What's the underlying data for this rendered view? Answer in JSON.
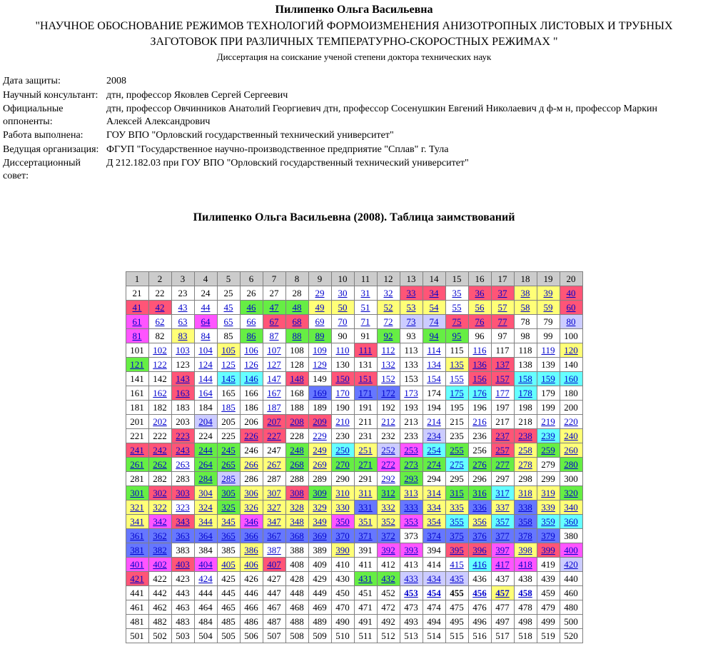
{
  "header": {
    "author": "Пилипенко Ольга Васильевна",
    "title": "\"НАУЧНОЕ ОБОСНОВАНИЕ РЕЖИМОВ ТЕХНОЛОГИЙ ФОРМОИЗМЕНЕНИЯ АНИЗОТРОПНЫХ ЛИСТОВЫХ И ТРУБНЫХ ЗАГОТОВОК ПРИ РАЗЛИЧНЫХ ТЕМПЕРАТУРНО-СКОРОСТНЫХ РЕЖИМАХ \"",
    "subtitle": "Диссертация на соискание ученой степени доктора технических наук"
  },
  "meta": {
    "rows": [
      {
        "label": "Дата защиты:",
        "value": "2008"
      },
      {
        "label": "Научный консультант:",
        "value": "дтн, профессор Яковлев Сергей Сергеевич"
      },
      {
        "label": "Официальные оппоненты:",
        "value": "дтн, профессор Овчинников Анатолий Георгиевич дтн, профессор Сосенушкин Евгений Николаевич д ф-м н, профессор Маркин Алексей Александрович"
      },
      {
        "label": "Работа выполнена:",
        "value": "ГОУ ВПО \"Орловский государственный технический университет\""
      },
      {
        "label": "Ведущая организация:",
        "value": "ФГУП \"Государственное научно-производственное предприятие \"Сплав\" г. Тула"
      },
      {
        "label": "Диссертационный совет:",
        "value": "Д 212.182.03 при ГОУ ВПО \"Орловский государственный технический университет\""
      }
    ]
  },
  "table_heading": "Пилипенко Ольга Васильевна (2008). Таблица заимствований",
  "grid": {
    "columns": 20,
    "start": 1,
    "end": 520,
    "link_color": "#0000cc",
    "plain_color": "#000000",
    "colors": {
      "g": "#cccccc",
      "w": "#ffffff",
      "r": "#ff5577",
      "y": "#ffff77",
      "m": "#ff55ff",
      "v": "#ccccff",
      "e": "#66ee44",
      "c": "#66ffff",
      "b": "#6677ff"
    },
    "bold_cells": [
      453,
      454,
      455,
      456,
      457,
      458
    ],
    "rows": [
      "g0 g0 g0 g0 g0 g0 g0 g0 g0 g0 g0 g0 g0 g0 g0 g0 g0 g0 g0 g0",
      "w0 w0 w0 w0 w0 w0 w0 w0 w1 w1 w1 w1 r1 r1 w1 r1 r1 y1 y1 r1",
      "r1 r1 w1 w1 w1 e1 e1 e1 y1 y1 w1 y1 y1 y1 w1 y1 y1 y1 y1 r1",
      "m1 w1 w1 m1 w1 w1 r1 r1 w1 w1 w1 w1 v1 v1 r1 r1 r1 w0 w0 v1",
      "m1 w0 y1 w1 w0 e1 w1 e1 e1 w0 w0 e1 w0 e1 e1 w0 w0 w0 w0 w0",
      "w0 w1 w1 w1 y1 w1 w1 w0 w1 w1 r1 w1 w0 w1 w0 w1 w0 w0 w1 y1",
      "e1 w1 w0 w1 w1 w1 w1 w0 w1 w0 w0 w1 w0 w1 y1 r1 r1 w0 w0 w0",
      "w0 w0 r1 w1 c1 c1 w1 r1 w0 r1 r1 w1 w0 w1 w1 r1 r1 c1 c1 c1",
      "w0 w1 r1 w1 w0 w0 w1 w0 b1 w1 b1 b1 w1 w0 c1 c1 w1 c1 w0 w0",
      "w0 w0 w0 w0 w1 w0 w1 w0 w0 w0 w0 w0 w0 w0 w0 w0 w0 w0 w0 w0",
      "w0 w1 w0 v1 w0 w0 r1 r1 r1 w1 w0 w1 w0 w1 w0 w1 w0 w0 w1 w1",
      "w0 w0 r1 w0 w0 r1 r1 w0 w1 w0 w0 w0 w0 v1 w0 w0 r1 r1 c1 y1",
      "r1 r1 r1 e1 e1 w0 w0 e1 y1 c1 y1 v1 m1 c1 e1 w0 r1 y1 e1 y1",
      "e1 e1 w1 e1 e1 y1 y1 e1 y1 e1 e1 m1 e1 e1 c1 e1 e1 y1 w0 e1",
      "w0 w0 w0 e1 v1 w0 w0 w0 w0 w0 w0 w1 e1 w0 w0 w0 w0 w0 w0 w0",
      "e1 r1 r1 y1 e1 y1 y1 r1 e1 y1 y1 e1 y1 y1 e1 e1 c1 y1 y1 e1",
      "y1 y1 w1 y1 e1 y1 y1 y1 y1 y1 b1 y1 b1 y1 y1 b1 y1 b1 y1 y1",
      "y1 m1 r1 y1 y1 m1 y1 y1 y1 m1 y1 y1 m1 y1 c1 y1 c1 b1 c1 c1",
      "b1 b1 b1 b1 b1 b1 b1 b1 b1 b1 b1 b1 w0 b1 b1 b1 b1 b1 b1 w0",
      "b1 b1 w0 w0 w0 y1 w1 w0 w0 y1 w0 m1 m1 w0 r1 r1 m1 y1 r1 m1",
      "m1 m1 r1 m1 y1 y1 r1 w0 w0 w0 w0 w0 w0 w0 w1 c1 m1 m1 w0 v1",
      "r1 w0 w0 w1 w0 w0 w0 w0 w0 w0 e1 e1 v1 v1 v1 w0 w0 w0 w0 w0",
      "w0 w0 w0 w0 w0 w0 w0 w0 w0 w0 w0 w0 w1 w1 w0 w1 y1 w1 w0 w0",
      "w0 w0 w0 w0 w0 w0 w0 w0 w0 w0 w0 w0 w0 w0 w0 w0 w0 w0 w0 w0",
      "w0 w0 w0 w0 w0 w0 w0 w0 w0 w0 w0 w0 w0 w0 w0 w0 w0 w0 w0 w0",
      "w0 w0 w0 w0 w0 w0 w0 w0 w0 w0 w0 w0 w0 w0 w0 w0 w0 w0 w0 w0"
    ]
  }
}
